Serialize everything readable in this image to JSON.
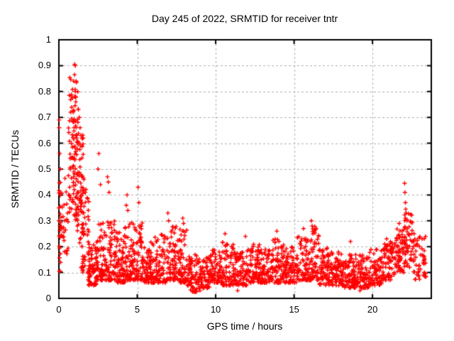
{
  "chart_data": {
    "type": "scatter",
    "title": "Day 245 of 2022, SRMTID for receiver tntr",
    "xlabel": "GPS time / hours",
    "ylabel": "SRMTID / TECUs",
    "xlim": [
      0,
      23.75
    ],
    "ylim": [
      0,
      1
    ],
    "xticks": [
      0,
      5,
      10,
      15,
      20
    ],
    "xtick_labels": [
      "0",
      "5",
      "10",
      "15",
      "20"
    ],
    "yticks": [
      0,
      0.1,
      0.2,
      0.3,
      0.4,
      0.5,
      0.6,
      0.7,
      0.8,
      0.9,
      1
    ],
    "ytick_labels": [
      "0",
      "0.1",
      "0.2",
      "0.3",
      "0.4",
      "0.5",
      "0.6",
      "0.7",
      "0.8",
      "0.9",
      "1"
    ],
    "grid": true,
    "grid_style": "dashed",
    "legend": "none",
    "marker": "plus",
    "marker_color": "#ff0000",
    "grid_color": "#b0b0b0",
    "border_color": "#000000",
    "text_color": "#000000",
    "background_color": "#ffffff",
    "series": [
      {
        "name": "SRMTID",
        "seed": 20220245,
        "bin_format": [
          "x_start_hours",
          "x_end_hours",
          "point_count",
          "y_min_TECUs",
          "y_max_TECUs",
          "skew_power"
        ],
        "cluster_bins": [
          [
            0.0,
            0.13,
            22,
            0.08,
            0.45,
            1.0
          ],
          [
            0.15,
            0.6,
            26,
            0.17,
            0.47,
            1.2
          ],
          [
            0.6,
            0.95,
            40,
            0.32,
            0.88,
            0.95
          ],
          [
            0.85,
            1.25,
            60,
            0.3,
            0.82,
            1.05
          ],
          [
            1.1,
            1.55,
            55,
            0.2,
            0.64,
            1.1
          ],
          [
            1.4,
            1.95,
            55,
            0.1,
            0.46,
            1.25
          ],
          [
            1.85,
            2.4,
            70,
            0.05,
            0.22,
            1.5
          ],
          [
            2.4,
            3.0,
            70,
            0.07,
            0.3,
            1.8
          ],
          [
            3.0,
            3.6,
            70,
            0.07,
            0.32,
            1.9
          ],
          [
            3.6,
            4.2,
            65,
            0.06,
            0.26,
            1.8
          ],
          [
            4.2,
            4.8,
            65,
            0.07,
            0.3,
            1.9
          ],
          [
            4.8,
            5.4,
            65,
            0.07,
            0.3,
            1.9
          ],
          [
            5.4,
            6.1,
            70,
            0.06,
            0.23,
            1.7
          ],
          [
            6.1,
            6.8,
            70,
            0.06,
            0.25,
            1.7
          ],
          [
            6.8,
            7.5,
            70,
            0.07,
            0.28,
            1.7
          ],
          [
            7.5,
            8.2,
            70,
            0.06,
            0.27,
            1.8
          ],
          [
            8.2,
            8.9,
            65,
            0.025,
            0.17,
            1.5
          ],
          [
            8.9,
            9.6,
            65,
            0.04,
            0.16,
            1.5
          ],
          [
            9.6,
            10.4,
            75,
            0.06,
            0.19,
            1.6
          ],
          [
            10.4,
            11.2,
            75,
            0.05,
            0.22,
            1.6
          ],
          [
            11.2,
            12.0,
            75,
            0.05,
            0.18,
            1.5
          ],
          [
            12.0,
            12.8,
            75,
            0.06,
            0.21,
            1.6
          ],
          [
            12.8,
            13.6,
            75,
            0.06,
            0.19,
            1.6
          ],
          [
            13.6,
            14.4,
            75,
            0.06,
            0.23,
            1.6
          ],
          [
            14.4,
            15.2,
            75,
            0.06,
            0.2,
            1.6
          ],
          [
            15.2,
            16.0,
            75,
            0.07,
            0.24,
            1.6
          ],
          [
            16.0,
            16.6,
            60,
            0.07,
            0.28,
            1.7
          ],
          [
            16.6,
            17.4,
            75,
            0.05,
            0.2,
            1.6
          ],
          [
            17.4,
            18.2,
            75,
            0.05,
            0.18,
            1.5
          ],
          [
            18.2,
            19.0,
            75,
            0.04,
            0.17,
            1.5
          ],
          [
            19.0,
            19.8,
            75,
            0.04,
            0.17,
            1.4
          ],
          [
            19.8,
            20.6,
            75,
            0.05,
            0.19,
            1.4
          ],
          [
            20.6,
            21.4,
            70,
            0.07,
            0.22,
            1.3
          ],
          [
            21.4,
            22.0,
            60,
            0.1,
            0.27,
            1.2
          ],
          [
            22.0,
            22.6,
            55,
            0.12,
            0.33,
            1.2
          ],
          [
            22.6,
            23.45,
            50,
            0.07,
            0.24,
            1.3
          ]
        ],
        "outlier_points": [
          [
            0.02,
            0.69
          ],
          [
            0.02,
            0.66
          ],
          [
            0.06,
            0.56
          ],
          [
            0.1,
            0.5
          ],
          [
            0.0,
            0.35
          ],
          [
            0.0,
            0.3
          ],
          [
            1.0,
            0.905
          ],
          [
            1.05,
            0.9
          ],
          [
            1.0,
            0.865
          ],
          [
            0.95,
            0.84
          ],
          [
            1.1,
            0.84
          ],
          [
            1.12,
            0.835
          ],
          [
            1.05,
            0.8
          ],
          [
            1.0,
            0.78
          ],
          [
            1.08,
            0.76
          ],
          [
            1.03,
            0.745
          ],
          [
            1.3,
            0.7
          ],
          [
            1.35,
            0.66
          ],
          [
            1.55,
            0.62
          ],
          [
            2.55,
            0.56
          ],
          [
            2.5,
            0.5
          ],
          [
            2.65,
            0.44
          ],
          [
            3.1,
            0.47
          ],
          [
            3.15,
            0.45
          ],
          [
            3.2,
            0.41
          ],
          [
            4.35,
            0.4
          ],
          [
            4.3,
            0.36
          ],
          [
            4.4,
            0.34
          ],
          [
            5.05,
            0.43
          ],
          [
            5.1,
            0.37
          ],
          [
            6.95,
            0.33
          ],
          [
            7.0,
            0.3
          ],
          [
            7.9,
            0.31
          ],
          [
            7.95,
            0.29
          ],
          [
            8.7,
            0.025
          ],
          [
            9.0,
            0.03
          ],
          [
            10.6,
            0.25
          ],
          [
            11.4,
            0.03
          ],
          [
            11.9,
            0.24
          ],
          [
            13.9,
            0.26
          ],
          [
            15.6,
            0.27
          ],
          [
            16.1,
            0.3
          ],
          [
            16.15,
            0.28
          ],
          [
            18.6,
            0.22
          ],
          [
            19.2,
            0.03
          ],
          [
            20.9,
            0.23
          ],
          [
            21.7,
            0.29
          ],
          [
            22.05,
            0.445
          ],
          [
            22.07,
            0.41
          ],
          [
            22.1,
            0.37
          ],
          [
            22.12,
            0.345
          ],
          [
            22.15,
            0.33
          ],
          [
            22.1,
            0.31
          ],
          [
            22.2,
            0.3
          ],
          [
            22.65,
            0.25
          ],
          [
            23.0,
            0.2
          ],
          [
            23.3,
            0.16
          ]
        ]
      }
    ]
  }
}
